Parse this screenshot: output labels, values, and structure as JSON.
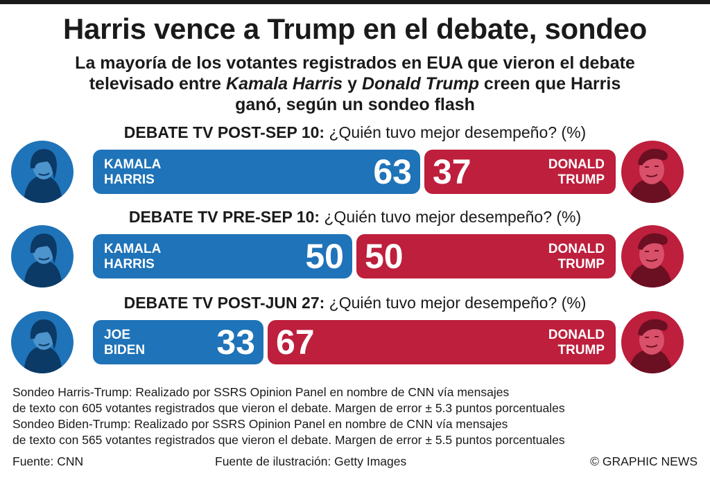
{
  "title": "Harris vence a Trump en el debate, sondeo",
  "subtitle": {
    "line1": "La mayoría de los votantes registrados en EUA que vieron el debate",
    "line2_pre": "televisado entre ",
    "line2_harris": "Kamala Harris",
    "line2_mid": " y ",
    "line2_trump": "Donald Trump",
    "line2_post": " creen que Harris",
    "line3": "ganó, según un sondeo flash"
  },
  "colors": {
    "left": "#1f73b8",
    "right": "#bd1f3c"
  },
  "chart_data": {
    "type": "bar",
    "orientation": "horizontal",
    "stacked": true,
    "unit": "%",
    "panels": [
      {
        "label_bold": "DEBATE TV POST-SEP 10:",
        "label_rest": " ¿Quién tuvo mejor desempeño? (%)",
        "left": {
          "name_line1": "KAMALA",
          "name_line2": "HARRIS",
          "value": 63
        },
        "right": {
          "name_line1": "DONALD",
          "name_line2": "TRUMP",
          "value": 37
        }
      },
      {
        "label_bold": "DEBATE TV PRE-SEP 10:",
        "label_rest": " ¿Quién tuvo mejor desempeño? (%)",
        "left": {
          "name_line1": "KAMALA",
          "name_line2": "HARRIS",
          "value": 50
        },
        "right": {
          "name_line1": "DONALD",
          "name_line2": "TRUMP",
          "value": 50
        }
      },
      {
        "label_bold": "DEBATE TV POST-JUN 27:",
        "label_rest": " ¿Quién tuvo mejor desempeño? (%)",
        "left": {
          "name_line1": "JOE",
          "name_line2": "BIDEN",
          "value": 33
        },
        "right": {
          "name_line1": "DONALD",
          "name_line2": "TRUMP",
          "value": 67
        }
      }
    ]
  },
  "notes": [
    "Sondeo Harris-Trump: Realizado por SSRS Opinion Panel en nombre de CNN vía mensajes",
    "de texto con 605 votantes registrados que vieron el debate. Margen de error ± 5.3 puntos porcentuales",
    "Sondeo Biden-Trump: Realizado por SSRS Opinion Panel en nombre de CNN vía mensajes",
    "de texto con 565 votantes registrados que vieron el debate. Margen de error ± 5.5 puntos porcentuales"
  ],
  "footer": {
    "source": "Fuente: CNN",
    "illustration": "Fuente de ilustración: Getty Images",
    "credit": "© GRAPHIC NEWS"
  },
  "icons": {
    "left_portrait": "candidate-portrait-icon",
    "right_portrait": "trump-portrait-icon"
  }
}
